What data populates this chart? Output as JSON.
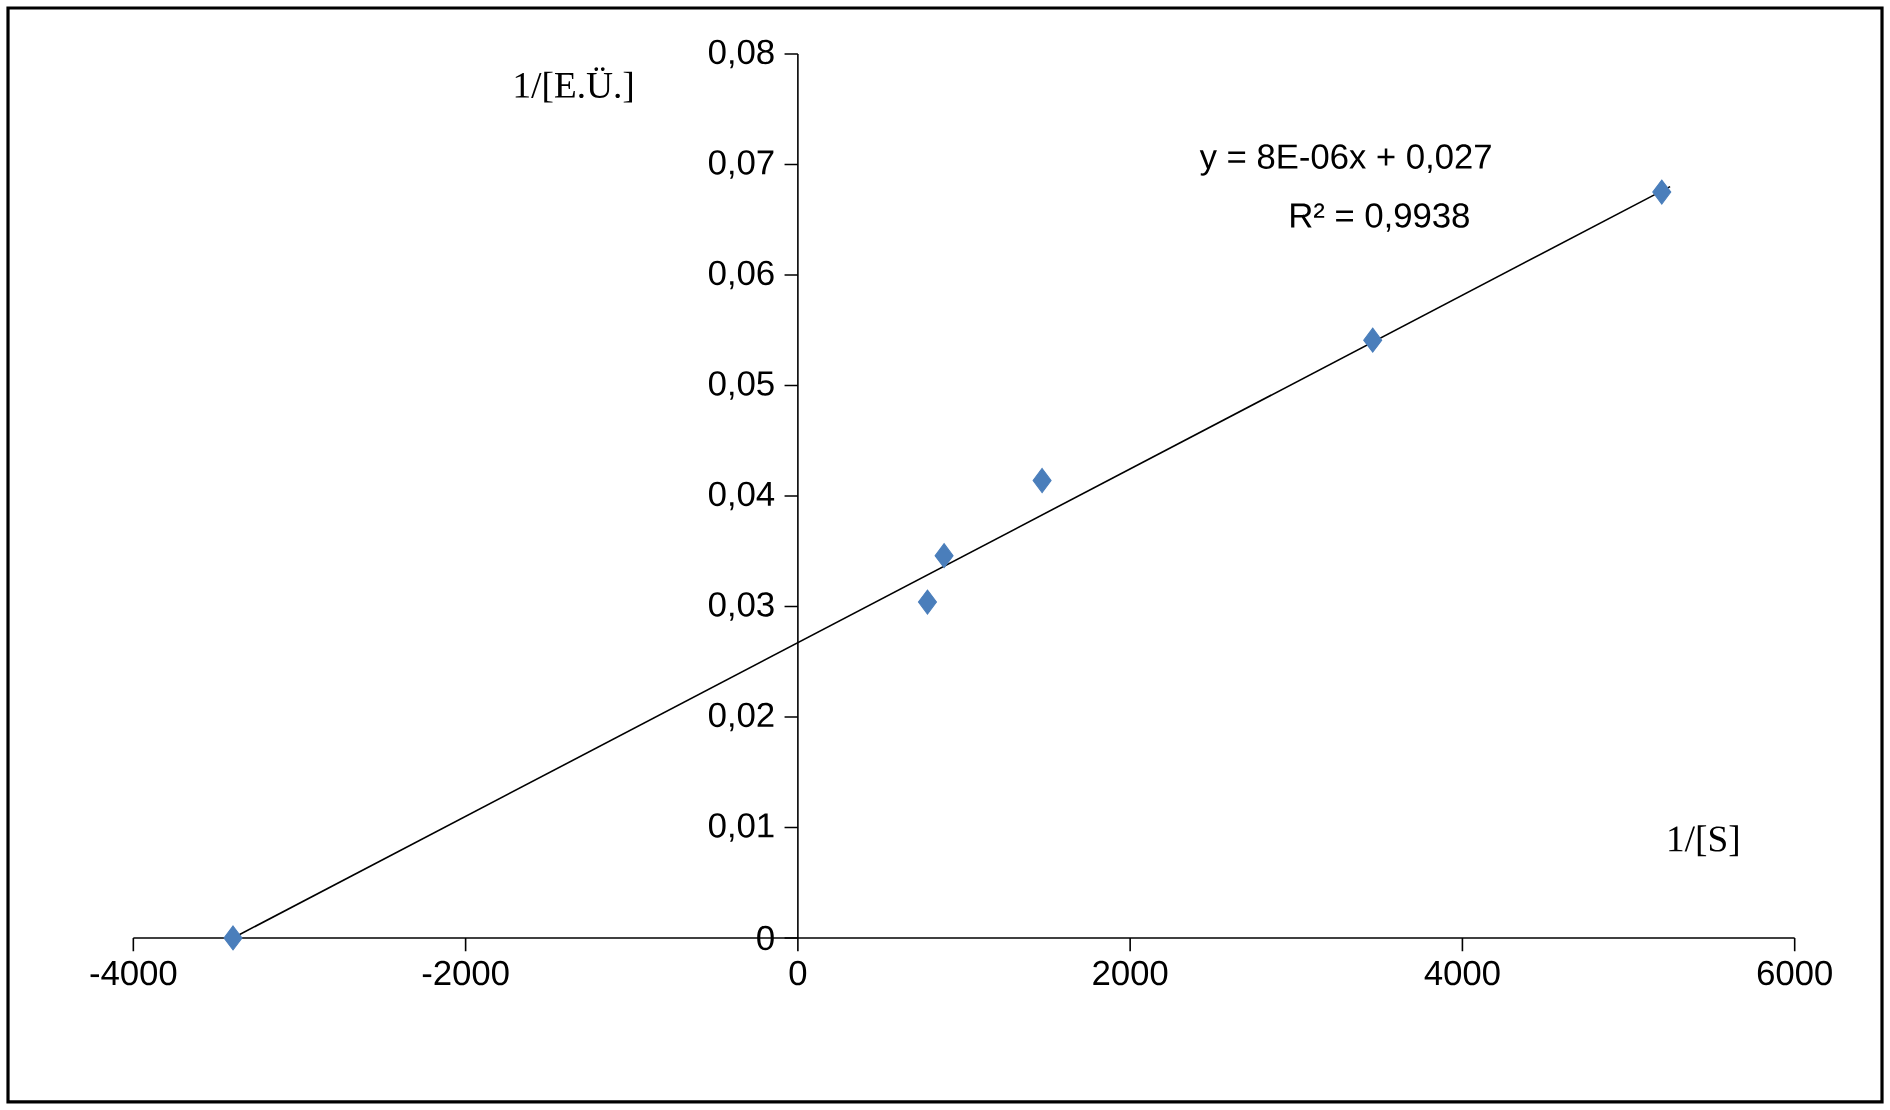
{
  "chart_data": {
    "type": "scatter",
    "xlabel": "1/[S]",
    "ylabel": "1/[E.Ü.]",
    "xlim": [
      -4000,
      6000
    ],
    "xticks": [
      -4000,
      -2000,
      0,
      2000,
      4000,
      6000
    ],
    "ylim": [
      0,
      0.08
    ],
    "yticks": [
      {
        "value": 0,
        "label": "0"
      },
      {
        "value": 0.01,
        "label": "0,01"
      },
      {
        "value": 0.02,
        "label": "0,02"
      },
      {
        "value": 0.03,
        "label": "0,03"
      },
      {
        "value": 0.04,
        "label": "0,04"
      },
      {
        "value": 0.05,
        "label": "0,05"
      },
      {
        "value": 0.06,
        "label": "0,06"
      },
      {
        "value": 0.07,
        "label": "0,07"
      },
      {
        "value": 0.08,
        "label": "0,08"
      }
    ],
    "series": [
      {
        "marker": "diamond",
        "color": "#4a7ebb",
        "x": [
          -3400,
          780,
          880,
          1470,
          3460,
          5200
        ],
        "values": [
          0.0,
          0.0304,
          0.0346,
          0.0414,
          0.0541,
          0.0675
        ]
      },
      {
        "type": "line",
        "color": "#000000",
        "x": [
          -3400,
          5250
        ],
        "values": [
          0.0,
          0.068
        ]
      }
    ],
    "annotations": [
      "y = 8E-06x + 0,027",
      "R² = 0,9938"
    ],
    "grid": false
  }
}
